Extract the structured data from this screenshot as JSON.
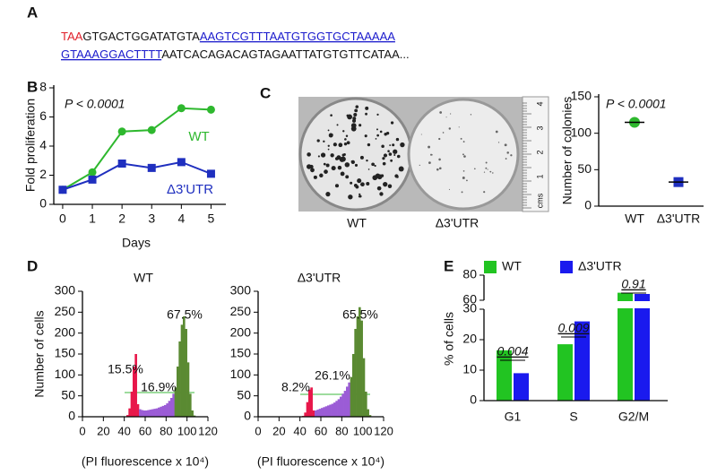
{
  "panel_labels": [
    "A",
    "B",
    "C",
    "D",
    "E"
  ],
  "sequence": {
    "red": "TAA",
    "black_1": "GTGACTGGATATGTA",
    "blue_1": "AAGTCGTTTAATGTGGTGCTAAAAA",
    "blue_2": "GTAAAGGACTTTT",
    "black_2": "AATCACAGACAGTAGAATTATGTGTTCATAA..."
  },
  "colony_photo": {
    "labels": [
      "WT",
      "Δ3'UTR"
    ],
    "ruler": [
      "cms",
      "1",
      "2",
      "3",
      "4"
    ]
  },
  "chart_data": [
    {
      "type": "line",
      "xlabel": "Days",
      "ylabel": "Fold proliferation",
      "annotation": "P < 0.0001",
      "x": [
        0,
        1,
        2,
        3,
        4,
        5
      ],
      "xlim": [
        -0.3,
        5.5
      ],
      "xticks": [
        0,
        1,
        2,
        3,
        4,
        5
      ],
      "ylim": [
        0,
        8
      ],
      "yticks": [
        0,
        2,
        4,
        6,
        8
      ],
      "series": [
        {
          "name": "WT",
          "color": "#2eb82e",
          "marker": "circle",
          "values": [
            1,
            2.2,
            5,
            5.1,
            6.6,
            6.5
          ]
        },
        {
          "name": "Δ3'UTR",
          "color": "#1f2fbf",
          "marker": "square",
          "values": [
            1,
            1.7,
            2.8,
            2.5,
            2.9,
            2.1
          ]
        }
      ]
    },
    {
      "type": "dot",
      "ylabel": "Number of colonies",
      "annotation": "P < 0.0001",
      "categories": [
        "WT",
        "Δ3'UTR"
      ],
      "values": [
        115,
        33
      ],
      "colors": [
        "#2eb82e",
        "#1f2fbf"
      ],
      "ylim": [
        0,
        150
      ],
      "yticks": [
        0,
        50,
        100,
        150
      ]
    },
    {
      "type": "histogram",
      "title": "WT",
      "xlabel": "(PI fluorescence x 10⁴)",
      "ylabel": "Number of cells",
      "xlim": [
        0,
        120
      ],
      "xticks": [
        0,
        20,
        40,
        60,
        80,
        100,
        120
      ],
      "ylim": [
        0,
        300
      ],
      "yticks": [
        0,
        50,
        100,
        150,
        200,
        250,
        300
      ],
      "annotations": [
        "15.5%",
        "16.9%",
        "67.5%"
      ],
      "series": [
        {
          "color": "#e8174a",
          "bins": [
            42,
            44,
            46,
            48,
            50,
            52,
            54
          ],
          "values": [
            4,
            20,
            60,
            120,
            150,
            30
          ]
        },
        {
          "color": "#9b5cd6",
          "bins": [
            54,
            56,
            58,
            60,
            62,
            64,
            66,
            68,
            70,
            72,
            74,
            76,
            78,
            80,
            82,
            84,
            86,
            88
          ],
          "values": [
            18,
            16,
            15,
            15,
            16,
            17,
            18,
            19,
            20,
            22,
            24,
            26,
            28,
            32,
            38,
            45,
            55
          ]
        },
        {
          "color": "#5a8a32",
          "bins": [
            88,
            90,
            92,
            94,
            96,
            98,
            100,
            102,
            104,
            106,
            108
          ],
          "values": [
            70,
            120,
            180,
            220,
            240,
            210,
            130,
            55,
            15,
            3
          ]
        }
      ]
    },
    {
      "type": "histogram",
      "title": "Δ3'UTR",
      "xlabel": "(PI fluorescence x 10⁴)",
      "xlim": [
        0,
        120
      ],
      "xticks": [
        0,
        20,
        40,
        60,
        80,
        100,
        120
      ],
      "ylim": [
        0,
        300
      ],
      "yticks": [
        0,
        50,
        100,
        150,
        200,
        250,
        300
      ],
      "annotations": [
        "8.2%",
        "26.1%",
        "65.5%"
      ],
      "series": [
        {
          "color": "#e8174a",
          "bins": [
            42,
            44,
            46,
            48,
            50,
            52,
            54
          ],
          "values": [
            2,
            10,
            35,
            65,
            70,
            15
          ]
        },
        {
          "color": "#9b5cd6",
          "bins": [
            54,
            56,
            58,
            60,
            62,
            64,
            66,
            68,
            70,
            72,
            74,
            76,
            78,
            80,
            82,
            84,
            86,
            88
          ],
          "values": [
            15,
            17,
            19,
            21,
            23,
            25,
            27,
            29,
            31,
            34,
            38,
            42,
            48,
            55,
            62,
            72,
            82
          ]
        },
        {
          "color": "#5a8a32",
          "bins": [
            88,
            90,
            92,
            94,
            96,
            98,
            100,
            102,
            104,
            106,
            108
          ],
          "values": [
            95,
            150,
            210,
            240,
            262,
            230,
            140,
            60,
            18,
            4
          ]
        }
      ]
    },
    {
      "type": "bar",
      "ylabel": "% of cells",
      "categories": [
        "G1",
        "S",
        "G2/M"
      ],
      "ylim": [
        0,
        80
      ],
      "axis_break": [
        30,
        60
      ],
      "yticks": [
        0,
        10,
        20,
        30,
        60,
        80
      ],
      "annotations": [
        "0.004",
        "0.009",
        "0.91"
      ],
      "series": [
        {
          "name": "WT",
          "color": "#22c422",
          "values": [
            16.5,
            18.5,
            66
          ]
        },
        {
          "name": "Δ3'UTR",
          "color": "#1a1aee",
          "values": [
            9,
            26,
            65
          ]
        }
      ]
    }
  ]
}
